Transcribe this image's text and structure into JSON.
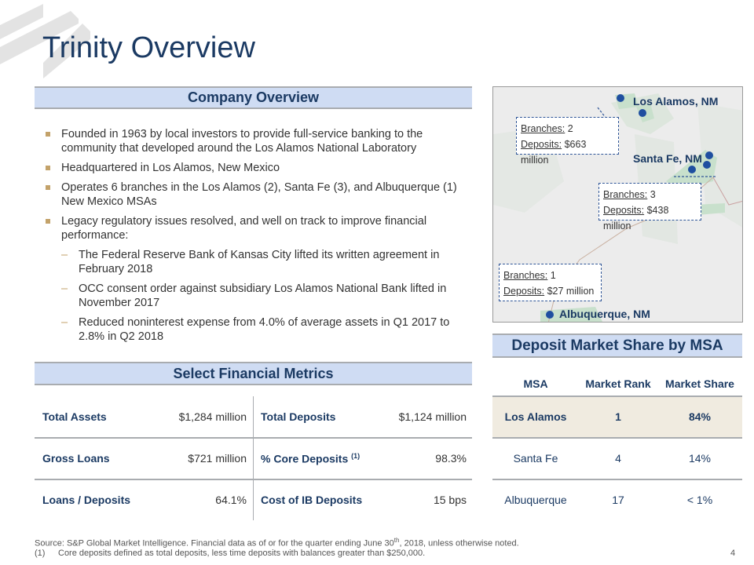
{
  "title": "Trinity Overview",
  "page_number": "4",
  "company_overview": {
    "heading": "Company Overview",
    "bullets": [
      "Founded in 1963 by local investors to provide full-service banking to the community that developed around the Los Alamos National Laboratory",
      "Headquartered in Los Alamos, New Mexico",
      "Operates 6 branches in the Los Alamos (2), Santa Fe (3), and Albuquerque (1) New Mexico MSAs",
      "Legacy regulatory issues resolved, and well on track to improve financial performance:"
    ],
    "sub_bullets": [
      "The Federal Reserve Bank of Kansas City lifted its written agreement in February 2018",
      "OCC consent order against subsidiary Los Alamos National Bank lifted in November 2017",
      "Reduced noninterest expense from 4.0% of average assets in Q1 2017 to 2.8% in Q2 2018"
    ]
  },
  "financial_metrics": {
    "heading": "Select Financial Metrics",
    "rows": [
      {
        "l1": "Total Assets",
        "v1": "$1,284 million",
        "l2": "Total Deposits",
        "s2": "",
        "v2": "$1,124 million"
      },
      {
        "l1": "Gross Loans",
        "v1": "$721 million",
        "l2": "% Core Deposits",
        "s2": "(1)",
        "v2": "98.3%"
      },
      {
        "l1": "Loans / Deposits",
        "v1": "64.1%",
        "l2": "Cost of IB Deposits",
        "s2": "",
        "v2": "15 bps"
      }
    ]
  },
  "map": {
    "branches_label": "Branches:",
    "deposits_label": "Deposits:",
    "locations": [
      {
        "name": "Los Alamos, NM",
        "branches": "2",
        "deposits": "$663 million"
      },
      {
        "name": "Santa Fe, NM",
        "branches": "3",
        "deposits": "$438 million"
      },
      {
        "name": "Albuquerque, NM",
        "branches": "1",
        "deposits": "$27 million"
      }
    ],
    "dot_color": "#1f4fa0"
  },
  "market_share": {
    "heading": "Deposit Market Share by MSA",
    "columns": [
      "MSA",
      "Market Rank",
      "Market Share"
    ],
    "rows": [
      [
        "Los Alamos",
        "1",
        "84%"
      ],
      [
        "Santa Fe",
        "4",
        "14%"
      ],
      [
        "Albuquerque",
        "17",
        "< 1%"
      ]
    ]
  },
  "footnotes": {
    "source_pre": "Source: S&P Global Market Intelligence. Financial data as of or for the quarter ending June 30",
    "source_sup": "th",
    "source_post": ", 2018, unless otherwise noted.",
    "note_num": "(1)",
    "note_text": "Core deposits defined as total deposits, less time deposits with balances greater than $250,000."
  }
}
